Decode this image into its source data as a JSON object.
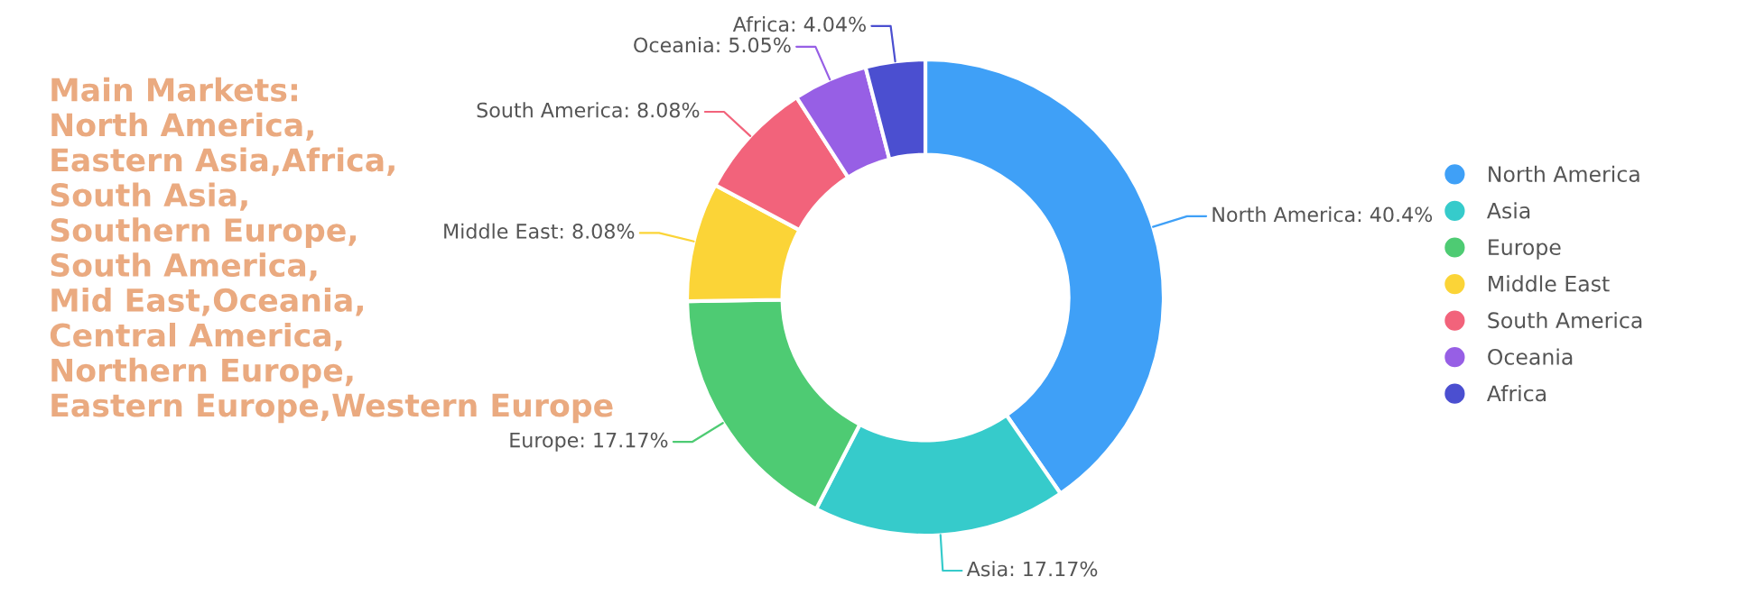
{
  "chart_data": {
    "type": "donut",
    "categories": [
      "North America",
      "Asia",
      "Europe",
      "Middle East",
      "South America",
      "Oceania",
      "Africa"
    ],
    "values": [
      40.4,
      17.17,
      17.17,
      8.08,
      8.08,
      5.05,
      4.04
    ],
    "colors": [
      "#3fa0f7",
      "#36cbcb",
      "#4ecb73",
      "#fbd437",
      "#f2637b",
      "#975fe5",
      "#4b4fd0"
    ],
    "value_labels": [
      "North America: 40.4%",
      "Asia: 17.17%",
      "Europe: 17.17%",
      "Middle East: 8.08%",
      "South America: 8.08%",
      "Oceania: 5.05%",
      "Africa: 4.04%"
    ],
    "annotations": [
      "Main Markets:\nNorth America,\nEastern Asia,Africa,\nSouth Asia,\nSouthern Europe,\nSouth America,\nMid East,Oceania,\nCentral America,\nNorthern Europe,\nEastern Europe,Western Europe"
    ],
    "legend": "right"
  }
}
